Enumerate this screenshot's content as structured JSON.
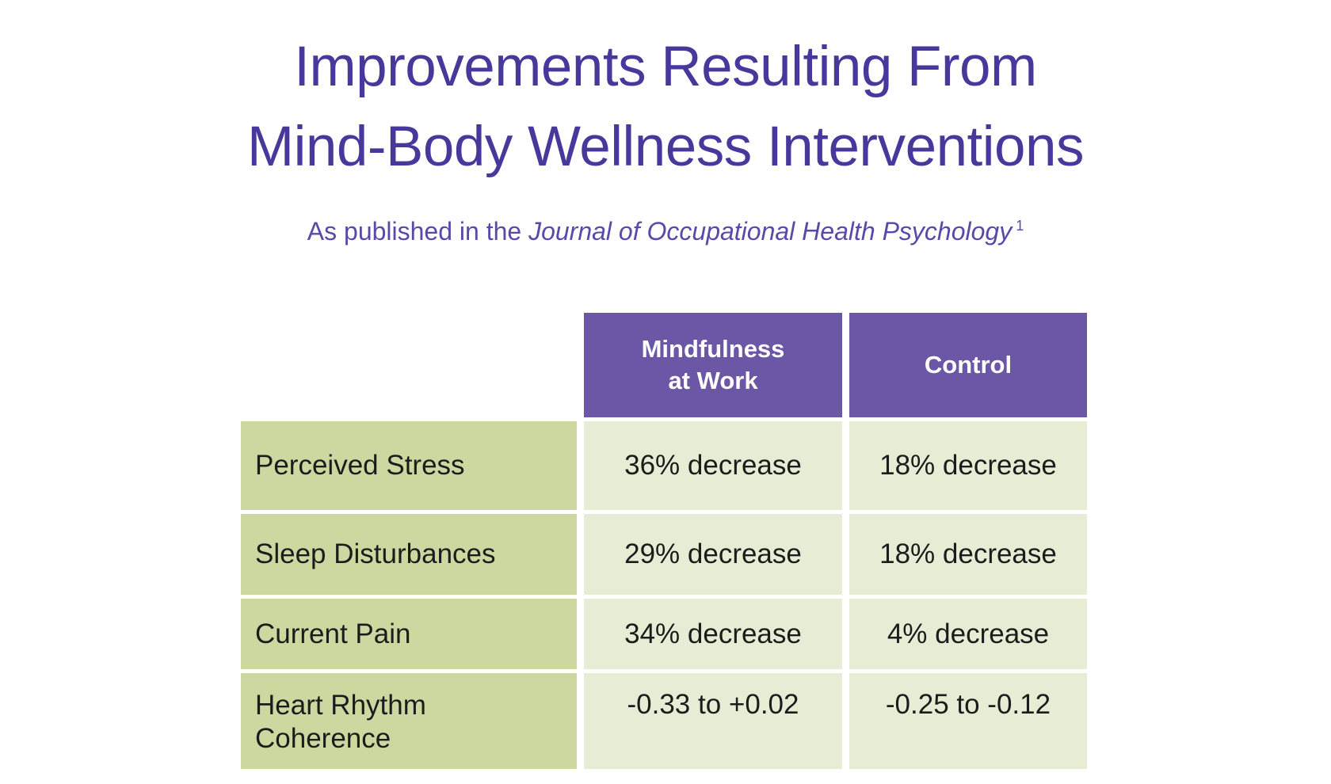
{
  "colors": {
    "title": "#47399c",
    "subtitle": "#5a49a8",
    "header_bg": "#6c56a6",
    "header_text": "#ffffff",
    "label_bg": "#ccd8a0",
    "value_bg": "#e6edd4",
    "cell_text": "#1c1c1c"
  },
  "title": {
    "line1": "Improvements Resulting From",
    "line2": "Mind-Body Wellness Interventions"
  },
  "subtitle": {
    "prefix": "As published in the ",
    "journal": "Journal of Occupational Health Psychology",
    "footnote": "1"
  },
  "table": {
    "header": {
      "mindfulness": "Mindfulness\nat Work",
      "control": "Control"
    },
    "rows": [
      {
        "label": "Perceived Stress",
        "mindfulness": "36% decrease",
        "control": "18% decrease"
      },
      {
        "label": "Sleep Disturbances",
        "mindfulness": "29% decrease",
        "control": "18% decrease"
      },
      {
        "label": "Current Pain",
        "mindfulness": "34% decrease",
        "control": "4% decrease"
      },
      {
        "label": "Heart Rhythm\nCoherence",
        "mindfulness": "-0.33 to +0.02",
        "control": "-0.25 to -0.12"
      }
    ]
  },
  "chart_data": {
    "type": "table",
    "title": "Improvements Resulting From Mind-Body Wellness Interventions",
    "subtitle": "As published in the Journal of Occupational Health Psychology [1]",
    "columns": [
      "",
      "Mindfulness at Work",
      "Control"
    ],
    "rows": [
      [
        "Perceived Stress",
        "36% decrease",
        "18% decrease"
      ],
      [
        "Sleep Disturbances",
        "29% decrease",
        "18% decrease"
      ],
      [
        "Current Pain",
        "34% decrease",
        "4% decrease"
      ],
      [
        "Heart Rhythm Coherence",
        "-0.33 to +0.02",
        "-0.25 to -0.12"
      ]
    ]
  }
}
